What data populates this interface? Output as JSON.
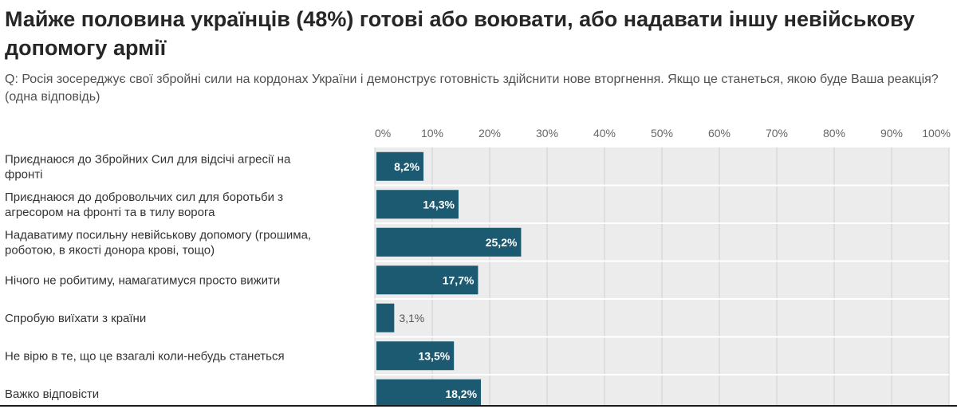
{
  "header": {
    "title": "Майже половина українців (48%) готові або воювати, або надавати іншу невійськову допомогу армії",
    "question": "Q: Росія зосереджує свої збройні сили на кордонах України і демонструє готовність здійснити нове вторгнення. Якщо це станеться, якою буде Ваша реакція? (одна відповідь)"
  },
  "colors": {
    "bar": "#1b5a70",
    "track": "#ececec",
    "grid": "#d0d0d0",
    "label_in": "#ffffff",
    "label_out": "#555555"
  },
  "chart_data": {
    "type": "bar",
    "orientation": "horizontal",
    "categories": [
      [
        "Приєднаюся до Збройних Сил для відсічі агресії на",
        "фронті"
      ],
      [
        "Приєднаюся до добровольчих сил для боротьби з",
        "агресором на фронті та в тилу ворога"
      ],
      [
        "Надаватиму посильну невійськову допомогу (грошима,",
        "роботою, в якості донора крові, тощо)"
      ],
      [
        "Нічого не робитиму, намагатимуся просто вижити"
      ],
      [
        "Спробую виїхати з країни"
      ],
      [
        "Не вірю в те, що це взагалі коли-небудь станеться"
      ],
      [
        "Важко відповісти"
      ]
    ],
    "values": [
      8.2,
      14.3,
      25.2,
      17.7,
      3.1,
      13.5,
      18.2
    ],
    "value_labels": [
      "8,2%",
      "14,3%",
      "25,2%",
      "17,7%",
      "3,1%",
      "13,5%",
      "18,2%"
    ],
    "xlim": [
      0,
      100
    ],
    "xticks": [
      "0%",
      "10%",
      "20%",
      "30%",
      "40%",
      "50%",
      "60%",
      "70%",
      "80%",
      "90%",
      "100%"
    ],
    "grid": true,
    "legend": "none"
  }
}
